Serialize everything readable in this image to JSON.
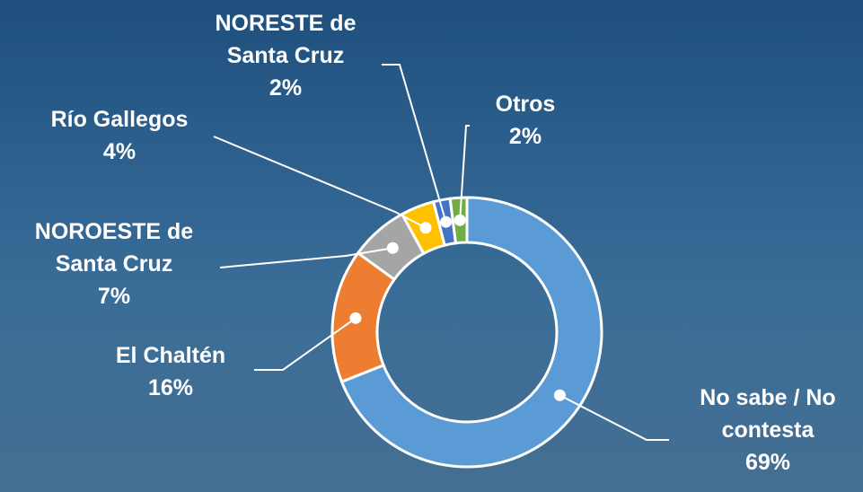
{
  "chart_data": {
    "type": "donut",
    "categories": [
      "No sabe / No contesta",
      "El Chaltén",
      "NOROESTE de Santa Cruz",
      "Río Gallegos",
      "NORESTE de Santa Cruz",
      "Otros"
    ],
    "values": [
      69,
      16,
      7,
      4,
      2,
      2
    ],
    "value_labels": [
      "69%",
      "16%",
      "7%",
      "4%",
      "2%",
      "2%"
    ],
    "colors": [
      "#5b9bd5",
      "#ed7d31",
      "#a5a5a5",
      "#ffc000",
      "#4472c4",
      "#70ad47"
    ]
  }
}
